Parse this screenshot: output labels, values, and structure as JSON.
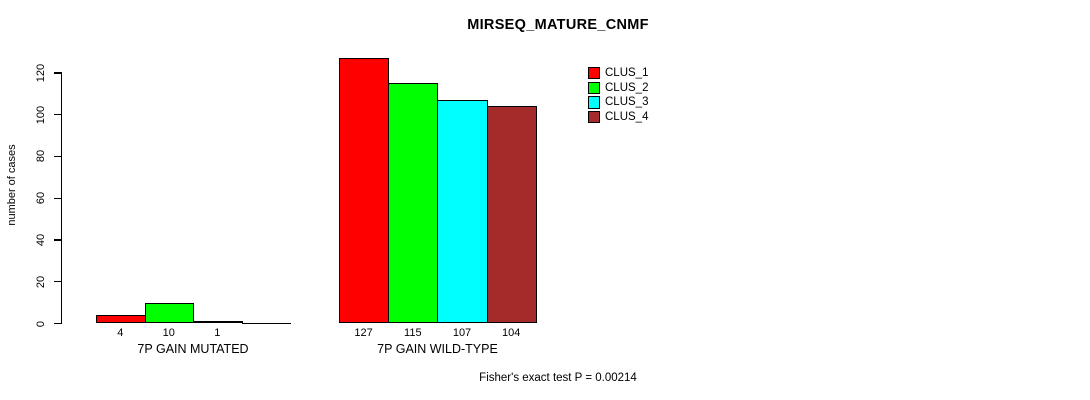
{
  "chart_data": {
    "type": "bar",
    "title": "MIRSEQ_MATURE_CNMF",
    "ylabel": "number of cases",
    "xlabel": "",
    "ylim": [
      0,
      120
    ],
    "yticks": [
      0,
      20,
      40,
      60,
      80,
      100,
      120
    ],
    "grid": false,
    "legend_position": "upper-right-inside",
    "categories": [
      "7P GAIN MUTATED",
      "7P GAIN WILD-TYPE"
    ],
    "series": [
      {
        "name": "CLUS_1",
        "color": "#ff0000",
        "values": [
          4,
          127
        ]
      },
      {
        "name": "CLUS_2",
        "color": "#00ff00",
        "values": [
          10,
          115
        ]
      },
      {
        "name": "CLUS_3",
        "color": "#00ffff",
        "values": [
          1,
          107
        ]
      },
      {
        "name": "CLUS_4",
        "color": "#a52a2a",
        "values": [
          0,
          104
        ]
      }
    ],
    "bar_value_labels": [
      [
        "4",
        "10",
        "1",
        ""
      ],
      [
        "127",
        "115",
        "107",
        "104"
      ]
    ],
    "annotation": "Fisher's exact test P = 0.00214"
  }
}
